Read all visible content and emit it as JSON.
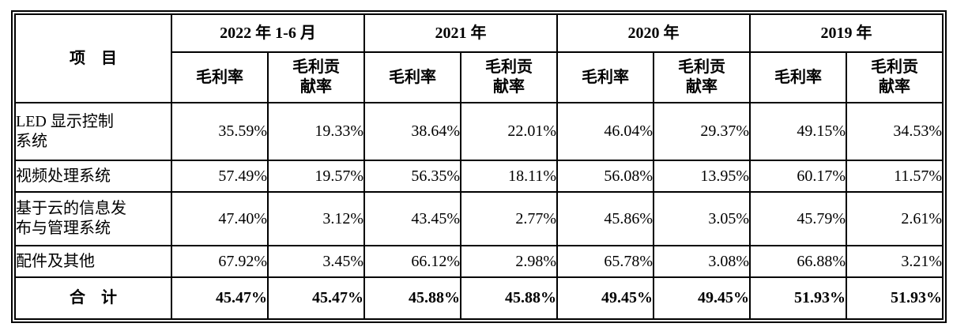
{
  "table": {
    "item_header": "项　目",
    "year_groups": [
      {
        "label": "2022 年 1-6 月"
      },
      {
        "label": "2021 年"
      },
      {
        "label": "2020 年"
      },
      {
        "label": "2019 年"
      }
    ],
    "sub_headers": {
      "gross_margin": "毛利率",
      "contribution": "毛利贡\n献率"
    },
    "rows": [
      {
        "label": "LED 显示控制\n系统",
        "values": [
          "35.59%",
          "19.33%",
          "38.64%",
          "22.01%",
          "46.04%",
          "29.37%",
          "49.15%",
          "34.53%"
        ]
      },
      {
        "label": "视频处理系统",
        "values": [
          "57.49%",
          "19.57%",
          "56.35%",
          "18.11%",
          "56.08%",
          "13.95%",
          "60.17%",
          "11.57%"
        ]
      },
      {
        "label": "基于云的信息发\n布与管理系统",
        "values": [
          "47.40%",
          "3.12%",
          "43.45%",
          "2.77%",
          "45.86%",
          "3.05%",
          "45.79%",
          "2.61%"
        ]
      },
      {
        "label": "配件及其他",
        "values": [
          "67.92%",
          "3.45%",
          "66.12%",
          "2.98%",
          "65.78%",
          "3.08%",
          "66.88%",
          "3.21%"
        ]
      }
    ],
    "total": {
      "label": "合　计",
      "values": [
        "45.47%",
        "45.47%",
        "45.88%",
        "45.88%",
        "49.45%",
        "49.45%",
        "51.93%",
        "51.93%"
      ]
    }
  },
  "colors": {
    "border": "#000000",
    "text": "#000000",
    "background": "#ffffff"
  }
}
